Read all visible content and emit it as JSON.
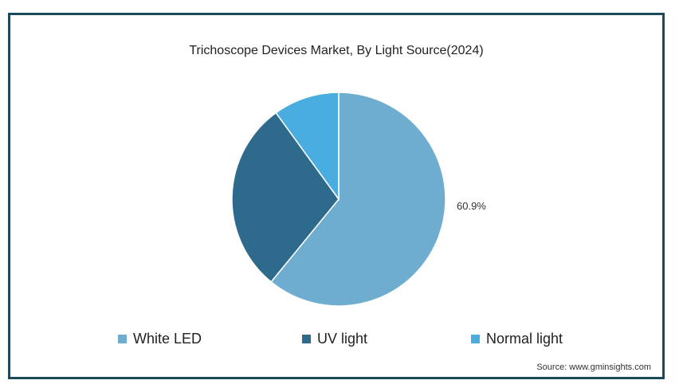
{
  "chart_data": {
    "type": "pie",
    "title": "Trichoscope Devices Market, By Light Source(2024)",
    "slices": [
      {
        "label": "White LED",
        "value": 60.9,
        "color": "#6fadd0",
        "data_label": "60.9%"
      },
      {
        "label": "UV light",
        "value": 29.1,
        "color": "#2e6a8c",
        "data_label": ""
      },
      {
        "label": "Normal light",
        "value": 10.0,
        "color": "#49ade0",
        "data_label": ""
      }
    ],
    "legend_placement": "bottom",
    "start_angle_deg": 0,
    "direction": "clockwise"
  },
  "source": "Source: www.gminsights.com"
}
